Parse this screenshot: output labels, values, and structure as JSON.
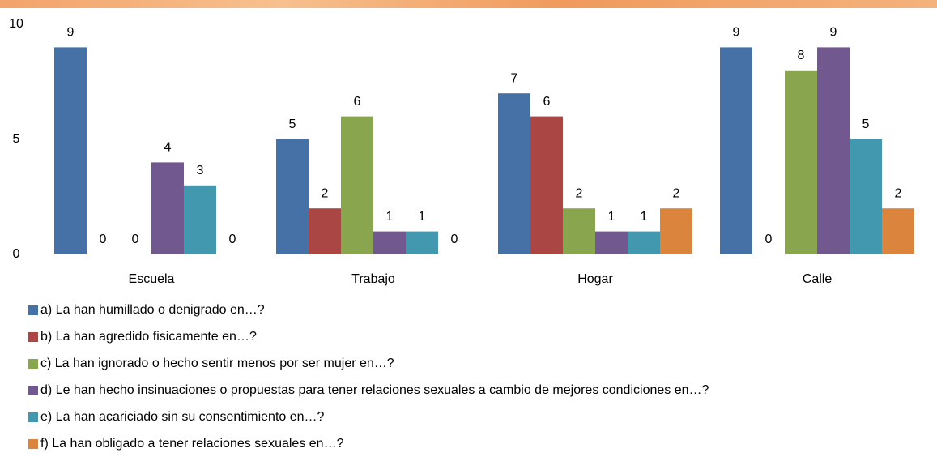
{
  "chart_data": {
    "type": "bar",
    "categories": [
      "Escuela",
      "Trabajo",
      "Hogar",
      "Calle"
    ],
    "series": [
      {
        "name": "a) La han humillado o denigrado en…?",
        "color": "#4671a7",
        "values": [
          9,
          5,
          7,
          9
        ]
      },
      {
        "name": "b) La han agredido fisicamente en…?",
        "color": "#aa4643",
        "values": [
          0,
          2,
          6,
          0
        ]
      },
      {
        "name": "c) La han ignorado o hecho sentir menos por ser mujer en…?",
        "color": "#89a54e",
        "values": [
          0,
          6,
          2,
          8
        ]
      },
      {
        "name": "d) Le han hecho insinuaciones o propuestas para tener relaciones sexuales a cambio de mejores condiciones en…?",
        "color": "#71588f",
        "values": [
          4,
          1,
          1,
          9
        ]
      },
      {
        "name": "e) La han acariciado sin su consentimiento en…?",
        "color": "#4198af",
        "values": [
          3,
          1,
          1,
          5
        ]
      },
      {
        "name": "f) La han obligado a tener relaciones sexuales en…?",
        "color": "#db843d",
        "values": [
          0,
          0,
          2,
          2
        ]
      }
    ],
    "ylim": [
      0,
      10
    ],
    "yticks": [
      0,
      5,
      10
    ],
    "grid": false,
    "legend": "bottom"
  }
}
